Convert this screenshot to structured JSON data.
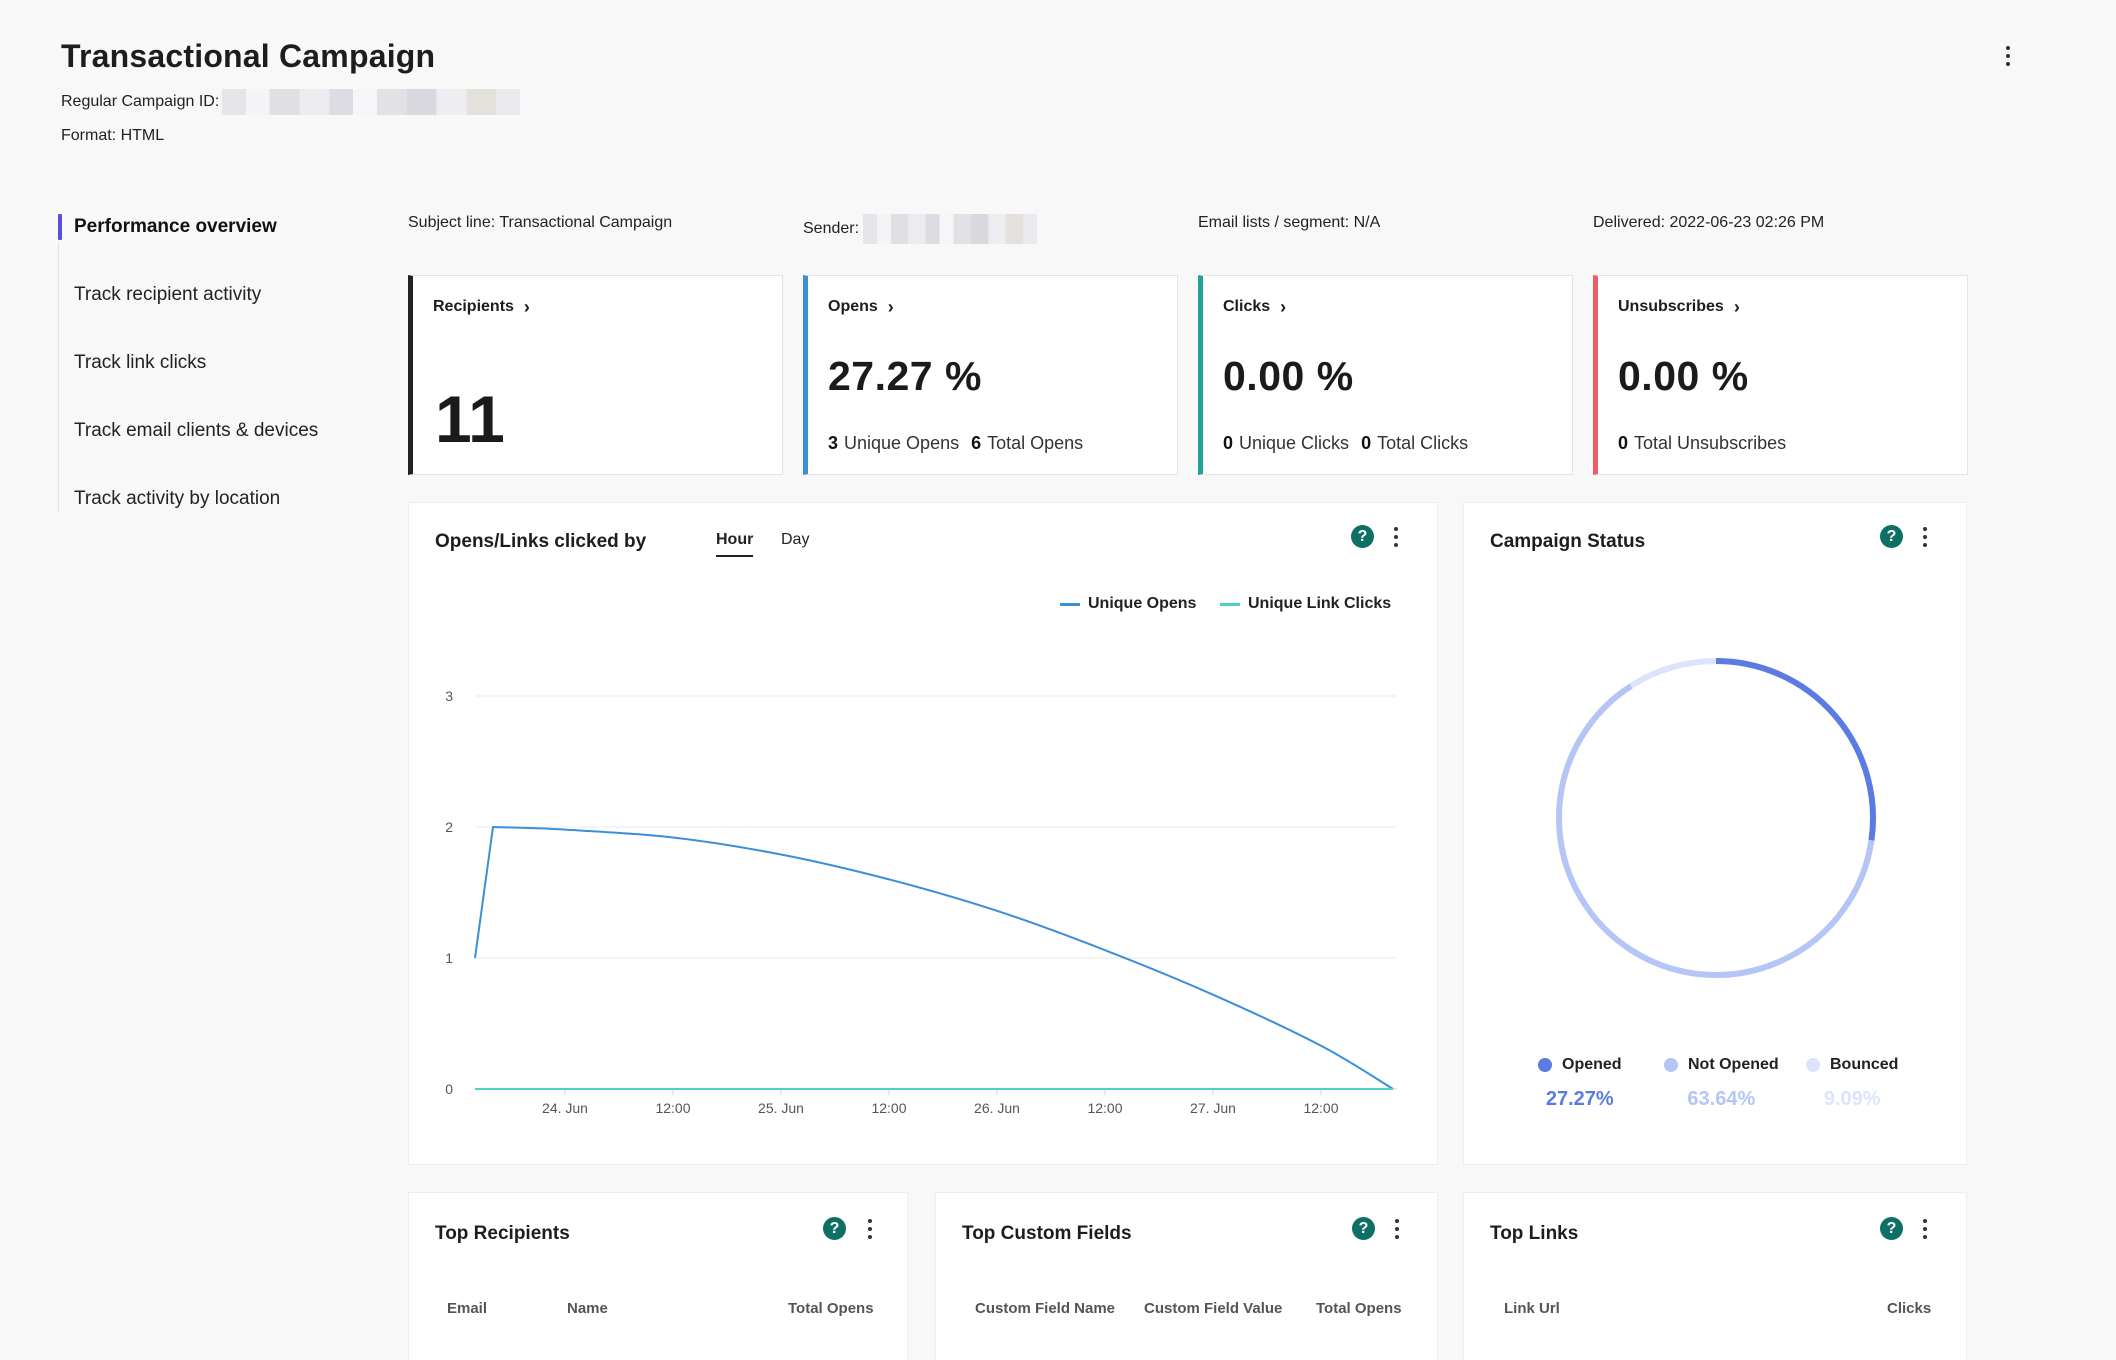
{
  "header": {
    "title": "Transactional Campaign",
    "campaign_id_label": "Regular Campaign ID:",
    "format_label": "Format: HTML"
  },
  "sidenav": {
    "items": [
      {
        "label": "Performance overview"
      },
      {
        "label": "Track recipient activity"
      },
      {
        "label": "Track link clicks"
      },
      {
        "label": "Track email clients & devices"
      },
      {
        "label": "Track activity by location"
      }
    ]
  },
  "summary": {
    "subject": "Subject line: Transactional Campaign",
    "sender_label": "Sender:",
    "lists": "Email lists / segment: N/A",
    "delivered": "Delivered: 2022-06-23 02:26 PM"
  },
  "cards": {
    "recipients": {
      "title": "Recipients",
      "value": "11"
    },
    "opens": {
      "title": "Opens",
      "value": "27.27 %",
      "unique_num": "3",
      "unique_label": "Unique Opens",
      "total_num": "6",
      "total_label": "Total Opens"
    },
    "clicks": {
      "title": "Clicks",
      "value": "0.00 %",
      "unique_num": "0",
      "unique_label": "Unique Clicks",
      "total_num": "0",
      "total_label": "Total Clicks"
    },
    "unsubscribes": {
      "title": "Unsubscribes",
      "value": "0.00 %",
      "total_num": "0",
      "total_label": "Total Unsubscribes"
    }
  },
  "colors": {
    "recipients": "#222222",
    "opens": "#3a8fd9",
    "clicks": "#22a39a",
    "unsubscribes": "#ef5b66",
    "opened": "#5b7be3",
    "not_opened": "#b5c5f5",
    "bounced": "#dce4fb"
  },
  "line_panel": {
    "title": "Opens/Links clicked by",
    "tabs": [
      "Hour",
      "Day"
    ],
    "active_tab": "Hour",
    "help": "?"
  },
  "chart_data": {
    "type": "line",
    "x_ticks": [
      "24. Jun",
      "12:00",
      "25. Jun",
      "12:00",
      "26. Jun",
      "12:00",
      "27. Jun",
      "12:00"
    ],
    "y_ticks": [
      "0",
      "1",
      "2",
      "3"
    ],
    "ylim": [
      0,
      3
    ],
    "legend_position": "top-right",
    "grid": true,
    "series": [
      {
        "name": "Unique Opens",
        "color": "#3a8fd9",
        "points": [
          [
            "2022-06-23 14:00",
            1
          ],
          [
            "2022-06-23 16:00",
            2
          ],
          [
            "2022-06-24 00:00",
            1.98
          ],
          [
            "2022-06-24 12:00",
            1.92
          ],
          [
            "2022-06-25 00:00",
            1.79
          ],
          [
            "2022-06-25 12:00",
            1.6
          ],
          [
            "2022-06-26 00:00",
            1.36
          ],
          [
            "2022-06-26 12:00",
            1.06
          ],
          [
            "2022-06-27 00:00",
            0.72
          ],
          [
            "2022-06-27 12:00",
            0.33
          ],
          [
            "2022-06-27 20:00",
            0
          ]
        ]
      },
      {
        "name": "Unique Link Clicks",
        "color": "#4fd1c7",
        "points": [
          [
            "2022-06-23 14:00",
            0
          ],
          [
            "2022-06-27 20:00",
            0
          ]
        ]
      }
    ]
  },
  "status_panel": {
    "title": "Campaign Status",
    "help": "?",
    "legend": [
      {
        "label": "Opened",
        "pct": "27.27%",
        "value": 27.27
      },
      {
        "label": "Not Opened",
        "pct": "63.64%",
        "value": 63.64
      },
      {
        "label": "Bounced",
        "pct": "9.09%",
        "value": 9.09
      }
    ]
  },
  "top_recipients": {
    "title": "Top Recipients",
    "help": "?",
    "columns": [
      "Email",
      "Name",
      "Total Opens"
    ]
  },
  "top_custom_fields": {
    "title": "Top Custom Fields",
    "help": "?",
    "columns": [
      "Custom Field Name",
      "Custom Field Value",
      "Total Opens"
    ]
  },
  "top_links": {
    "title": "Top Links",
    "help": "?",
    "columns": [
      "Link Url",
      "Clicks"
    ]
  }
}
